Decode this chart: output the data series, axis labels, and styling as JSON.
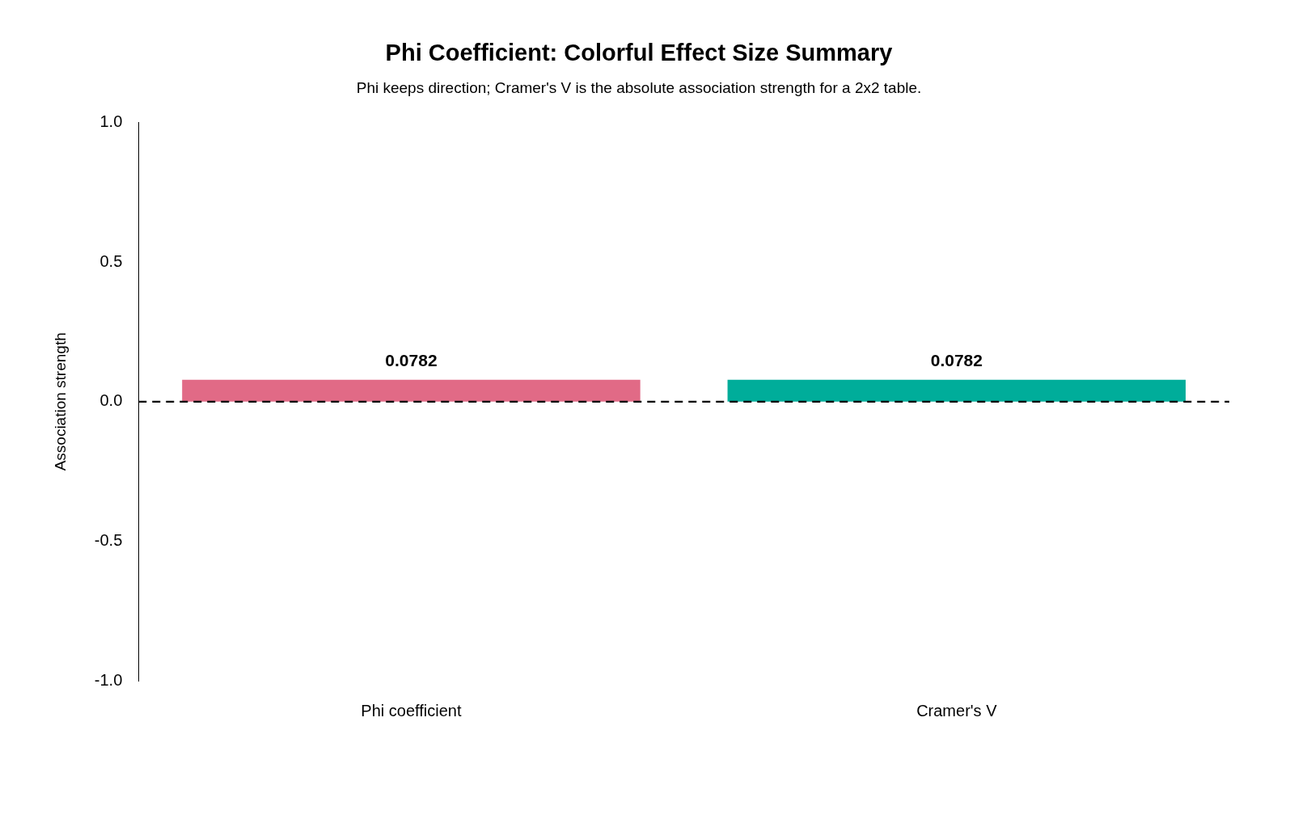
{
  "chart_data": {
    "type": "bar",
    "title": "Phi Coefficient: Colorful Effect Size Summary",
    "subtitle": "Phi keeps direction; Cramer's V is the absolute association strength for a 2x2 table.",
    "ylabel": "Association strength",
    "categories": [
      "Phi coefficient",
      "Cramer's V"
    ],
    "values": [
      0.0782,
      0.0782
    ],
    "colors": [
      "#e16a86",
      "#00ad9a"
    ],
    "ylim": [
      -1,
      1
    ],
    "yticks": [
      {
        "value": -1,
        "label": "-1.0"
      },
      -0.5,
      {
        "value": 0,
        "label": "0.0"
      },
      0.5,
      {
        "value": 1,
        "label": "1.0"
      }
    ],
    "grid": false,
    "legend": false,
    "data_labels": true,
    "ref_lines": [
      {
        "axis": "y",
        "value": 0,
        "color": "#000000",
        "line_style": "dashed"
      }
    ]
  }
}
